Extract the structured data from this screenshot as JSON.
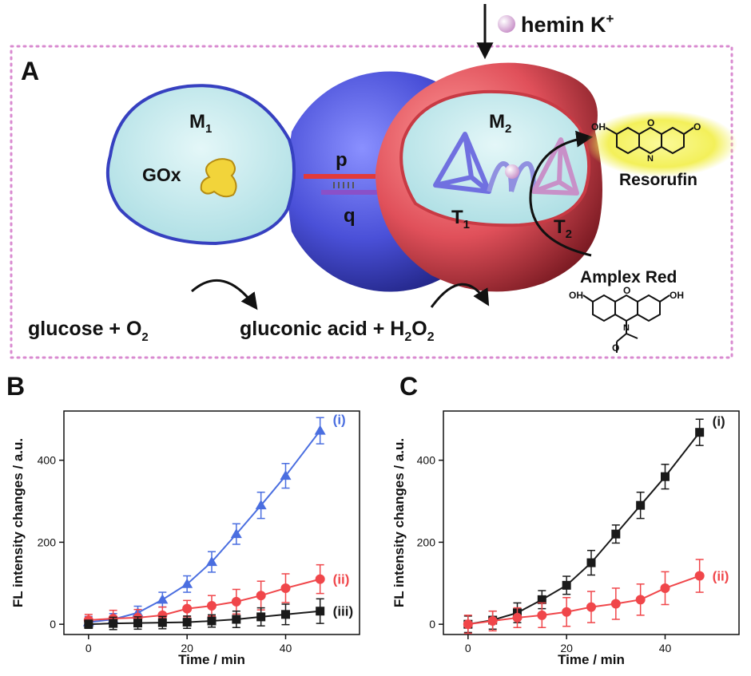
{
  "panel_labels": {
    "a": "A",
    "b": "B",
    "c": "C"
  },
  "scheme": {
    "input_text": "hemin K",
    "input_sup": "+",
    "m1_main": "M",
    "m1_sub": "1",
    "m2_main": "M",
    "m2_sub": "2",
    "enzyme": "GOx",
    "strand_p": "p",
    "strand_q": "q",
    "t1_main": "T",
    "t1_sub": "1",
    "t2_main": "T",
    "t2_sub": "2",
    "product": "Resorufin",
    "substrate": "Amplex Red",
    "reaction_left": "glucose + O",
    "reaction_left_sub": "2",
    "reaction_right_a": "gluconic acid + H",
    "reaction_right_sub1": "2",
    "reaction_right_b": "O",
    "reaction_right_sub2": "2",
    "oh": "OH",
    "o": "O",
    "n": "N",
    "colors": {
      "capsule_m1": "#4a50d8",
      "capsule_m2": "#e0505a",
      "interior": "#bfe6ea",
      "frame_dots": "#d98ad0",
      "glow": "#f3f05a"
    }
  },
  "chart_data": [
    {
      "type": "line",
      "panel": "B",
      "xlabel": "Time / min",
      "ylabel": "FL intensity changes / a.u.",
      "xlim": [
        -5,
        55
      ],
      "ylim": [
        -25,
        520
      ],
      "xticks": [
        0,
        20,
        40
      ],
      "yticks": [
        0,
        200,
        400
      ],
      "x": [
        0,
        5,
        10,
        15,
        20,
        25,
        30,
        35,
        40,
        47
      ],
      "series": [
        {
          "name": "(i)",
          "marker": "triangle",
          "color": "#4a6ee0",
          "values": [
            5,
            12,
            28,
            60,
            98,
            152,
            220,
            290,
            362,
            472
          ],
          "errors": [
            14,
            14,
            16,
            18,
            20,
            25,
            25,
            32,
            30,
            32
          ]
        },
        {
          "name": "(ii)",
          "marker": "circle",
          "color": "#f0464a",
          "values": [
            10,
            14,
            16,
            22,
            38,
            45,
            55,
            70,
            88,
            110
          ],
          "errors": [
            14,
            20,
            20,
            20,
            20,
            25,
            30,
            35,
            35,
            35
          ]
        },
        {
          "name": "(iii)",
          "marker": "square",
          "color": "#1a1a1a",
          "values": [
            0,
            2,
            3,
            4,
            5,
            8,
            12,
            18,
            24,
            32
          ],
          "errors": [
            10,
            15,
            15,
            15,
            15,
            15,
            20,
            22,
            25,
            30
          ]
        }
      ]
    },
    {
      "type": "line",
      "panel": "C",
      "xlabel": "Time / min",
      "ylabel": "FL intensity changes / a.u.",
      "xlim": [
        -5,
        55
      ],
      "ylim": [
        -25,
        520
      ],
      "xticks": [
        0,
        20,
        40
      ],
      "yticks": [
        0,
        200,
        400
      ],
      "x": [
        0,
        5,
        10,
        15,
        20,
        25,
        30,
        35,
        40,
        47
      ],
      "series": [
        {
          "name": "(i)",
          "marker": "square",
          "color": "#1a1a1a",
          "values": [
            0,
            10,
            28,
            60,
            95,
            150,
            220,
            290,
            360,
            468
          ],
          "errors": [
            20,
            22,
            24,
            22,
            22,
            30,
            22,
            32,
            30,
            32
          ]
        },
        {
          "name": "(ii)",
          "marker": "circle",
          "color": "#f0464a",
          "values": [
            0,
            8,
            16,
            22,
            30,
            42,
            50,
            60,
            88,
            118
          ],
          "errors": [
            22,
            24,
            24,
            30,
            35,
            38,
            38,
            38,
            40,
            40
          ]
        }
      ]
    }
  ]
}
